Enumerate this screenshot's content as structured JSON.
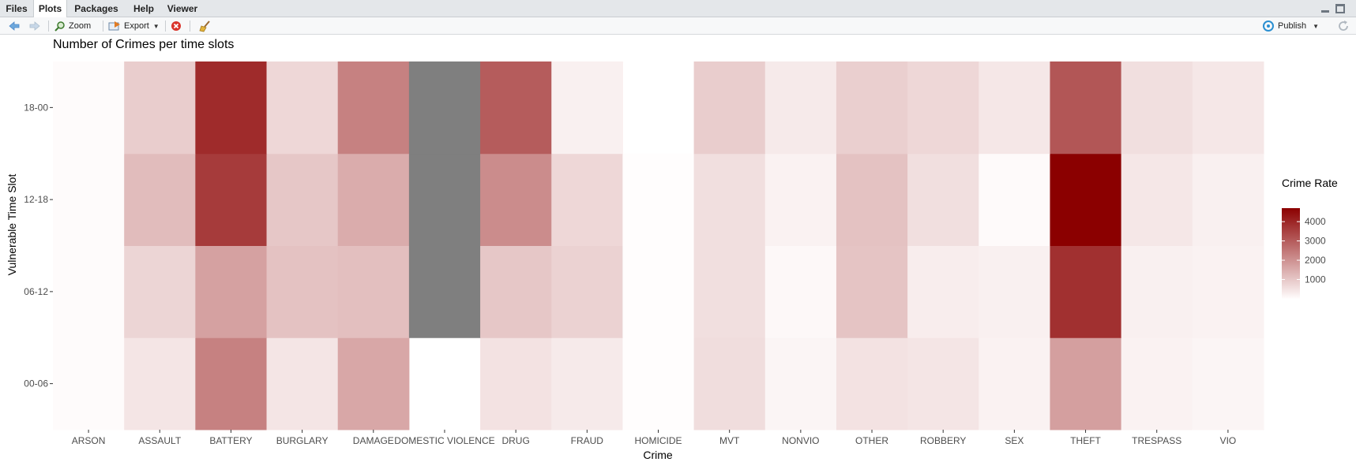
{
  "tabs": [
    {
      "label": "Files",
      "active": false
    },
    {
      "label": "Plots",
      "active": true
    },
    {
      "label": "Packages",
      "active": false
    },
    {
      "label": "Help",
      "active": false
    },
    {
      "label": "Viewer",
      "active": false
    }
  ],
  "toolbar": {
    "zoom_label": "Zoom",
    "export_label": "Export",
    "publish_label": "Publish"
  },
  "icons": {
    "back": "arrow-left-icon",
    "forward": "arrow-right-icon",
    "zoom": "magnifier-icon",
    "export": "export-icon",
    "remove": "remove-plot-icon",
    "clear": "broom-icon",
    "publish": "publish-icon",
    "refresh": "refresh-icon",
    "minimize": "minimize-icon",
    "maximize": "maximize-icon"
  },
  "colors": {
    "low": "#fffdfd",
    "high": "#8b0000",
    "na": "#7f7f7f"
  },
  "chart_data": {
    "type": "heatmap",
    "title": "Number of Crimes per time slots",
    "xlabel": "Crime",
    "ylabel": "Vulnerable Time Slot",
    "legend_title": "Crime Rate",
    "legend_position": "right",
    "legend_ticks": [
      1000,
      2000,
      3000,
      4000
    ],
    "value_range": [
      0,
      4700
    ],
    "grid": false,
    "x": [
      "ARSON",
      "ASSAULT",
      "BATTERY",
      "BURGLARY",
      "DAMAGE",
      "DOMESTIC VIOLENCE",
      "DRUG",
      "FRAUD",
      "HOMICIDE",
      "MVT",
      "NONVIO",
      "OTHER",
      "ROBBERY",
      "SEX",
      "THEFT",
      "TRESPASS",
      "VIO"
    ],
    "y": [
      "00-06",
      "06-12",
      "12-18",
      "18-00"
    ],
    "values": [
      [
        40,
        450,
        2300,
        450,
        1600,
        null,
        500,
        350,
        0,
        600,
        150,
        500,
        450,
        200,
        1750,
        200,
        150
      ],
      [
        40,
        750,
        1700,
        1100,
        1150,
        "NA",
        1000,
        800,
        0,
        550,
        100,
        1050,
        300,
        250,
        3800,
        250,
        200
      ],
      [
        40,
        1200,
        3600,
        1000,
        1500,
        "NA",
        2100,
        700,
        0,
        550,
        200,
        1100,
        550,
        60,
        4700,
        400,
        250
      ],
      [
        40,
        900,
        3900,
        700,
        2300,
        "NA",
        3000,
        250,
        null,
        900,
        350,
        850,
        700,
        400,
        3100,
        550,
        400
      ]
    ]
  }
}
